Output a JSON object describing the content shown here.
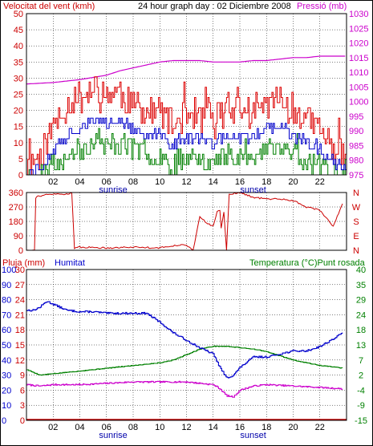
{
  "header": {
    "title": "24 hour graph day : 02 Diciembre 2008"
  },
  "colors": {
    "wind_avg": "#0000cc",
    "wind_gust": "#dd0000",
    "wind_min": "#008000",
    "pressure": "#cc00cc",
    "direction": "#cc0000",
    "humidity": "#0000cc",
    "temperature": "#008000",
    "dewpoint": "#cc00cc",
    "rain": "#cc0000",
    "frame": "#000000",
    "grid": "#000000"
  },
  "chart_data": [
    {
      "type": "line",
      "panel": "wind",
      "title": "24 hour graph day : 02 Diciembre 2008",
      "ylabel_left": "Velocitat del vent (kmh)",
      "ylabel_right": "Pressió (mb)",
      "left_ticks": [
        "0",
        "5",
        "10",
        "15",
        "20",
        "25",
        "30",
        "35",
        "40",
        "45",
        "50"
      ],
      "right_ticks": [
        "975",
        "980",
        "985",
        "990",
        "995",
        "1000",
        "1005",
        "1010",
        "1015",
        "1020",
        "1025",
        "1030"
      ],
      "x_ticks": [
        "02",
        "04",
        "06",
        "08",
        "10",
        "12",
        "14",
        "16",
        "18",
        "20",
        "22"
      ],
      "x_annotations": [
        {
          "hour": 6.5,
          "text": "sunrise"
        },
        {
          "hour": 17,
          "text": "sunset"
        }
      ],
      "xlim": [
        0,
        24
      ],
      "ylim_left": [
        0,
        50
      ],
      "ylim_right": [
        975,
        1030
      ],
      "series": [
        {
          "key": "pressure",
          "axis": "right",
          "x": [
            0,
            2,
            4,
            6,
            7,
            8,
            9,
            10,
            11,
            12,
            13,
            14,
            15,
            16,
            17,
            18,
            19,
            20,
            21,
            22,
            23,
            24
          ],
          "y": [
            1006,
            1006.5,
            1007.5,
            1009,
            1010.5,
            1011.5,
            1012.5,
            1013.5,
            1014,
            1014,
            1014,
            1013.5,
            1013.5,
            1013.5,
            1014,
            1014,
            1014.5,
            1015,
            1015,
            1015.5,
            1015.5,
            1015.5
          ]
        },
        {
          "key": "wind_gust",
          "axis": "left",
          "x": [
            0,
            1,
            2,
            3,
            4,
            5,
            6,
            7,
            8,
            9,
            10,
            11,
            12,
            13,
            14,
            15,
            16,
            17,
            18,
            19,
            20,
            21,
            22,
            23,
            24
          ],
          "y": [
            3,
            6,
            15,
            22,
            24,
            26,
            25,
            26,
            21,
            19,
            20,
            15,
            20,
            18,
            17,
            21,
            20,
            19,
            22,
            24,
            20,
            17,
            14,
            8,
            6
          ]
        },
        {
          "key": "wind_avg",
          "axis": "left",
          "x": [
            0,
            1,
            2,
            3,
            4,
            5,
            6,
            7,
            8,
            9,
            10,
            11,
            12,
            13,
            14,
            15,
            16,
            17,
            18,
            19,
            20,
            21,
            22,
            23,
            24
          ],
          "y": [
            1,
            2,
            8,
            12,
            15,
            17,
            16,
            17,
            14,
            12,
            12,
            9,
            12,
            11,
            10,
            12,
            12,
            11,
            14,
            15,
            12,
            10,
            8,
            4,
            3
          ]
        },
        {
          "key": "wind_min",
          "axis": "left",
          "x": [
            0,
            1,
            2,
            3,
            4,
            5,
            6,
            7,
            8,
            9,
            10,
            11,
            12,
            13,
            14,
            15,
            16,
            17,
            18,
            19,
            20,
            21,
            22,
            23,
            24
          ],
          "y": [
            0,
            0,
            3,
            6,
            8,
            10,
            9,
            10,
            8,
            6,
            6,
            3,
            6,
            5,
            4,
            6,
            6,
            5,
            8,
            9,
            6,
            4,
            3,
            1,
            0
          ]
        }
      ]
    },
    {
      "type": "line",
      "panel": "direction",
      "left_ticks": [
        "0",
        "90",
        "180",
        "270",
        "360"
      ],
      "right_ticks": [
        "N",
        "E",
        "S",
        "W",
        "N"
      ],
      "xlim": [
        0,
        24
      ],
      "ylim": [
        0,
        360
      ],
      "series": [
        {
          "key": "direction",
          "x": [
            0,
            0.6,
            0.7,
            1,
            2,
            3,
            3.4,
            3.6,
            4,
            6,
            8,
            10,
            11.5,
            12.2,
            12.5,
            13,
            13.5,
            14,
            14.3,
            14.5,
            14.6,
            14.8,
            15,
            15.2,
            16,
            17,
            18,
            19,
            20,
            21,
            22,
            23,
            23.7
          ],
          "y": [
            0,
            0,
            330,
            340,
            350,
            350,
            360,
            10,
            20,
            15,
            20,
            15,
            35,
            25,
            0,
            210,
            170,
            150,
            240,
            250,
            140,
            240,
            0,
            350,
            360,
            330,
            320,
            320,
            310,
            270,
            250,
            150,
            290
          ]
        }
      ]
    },
    {
      "type": "line",
      "panel": "climate",
      "ylabel_left_rain": "Pluja (mm)",
      "ylabel_left_hum": "Humitat",
      "ylabel_right": "Temperatura (°C)Punt rosada",
      "rain_ticks": [
        "0",
        "3",
        "6",
        "9",
        "12",
        "15",
        "18",
        "21",
        "24",
        "27",
        "30"
      ],
      "hum_ticks": [
        "0",
        "10",
        "20",
        "30",
        "40",
        "50",
        "60",
        "70",
        "80",
        "90",
        "100"
      ],
      "temp_ticks": [
        "-15",
        "-9",
        "-4",
        "2",
        "7",
        "13",
        "18",
        "24",
        "29",
        "35",
        "40"
      ],
      "x_ticks": [
        "02",
        "04",
        "06",
        "08",
        "10",
        "12",
        "14",
        "16",
        "18",
        "20",
        "22"
      ],
      "x_annotations": [
        {
          "hour": 6.5,
          "text": "sunrise"
        },
        {
          "hour": 17,
          "text": "sunset"
        }
      ],
      "xlim": [
        0,
        24
      ],
      "ylim_humidity": [
        0,
        100
      ],
      "ylim_temperature": [
        -15,
        40
      ],
      "ylim_rain": [
        0,
        30
      ],
      "series": [
        {
          "key": "humidity",
          "axis": "humidity",
          "x": [
            0,
            0.5,
            1,
            1.5,
            2,
            3,
            4,
            5,
            6,
            7,
            8,
            9,
            10,
            11,
            12,
            13,
            14,
            14.5,
            15,
            15.5,
            16,
            17,
            18,
            19,
            20,
            21,
            22,
            23,
            23.7
          ],
          "y": [
            73,
            73,
            75,
            79,
            77,
            73,
            72,
            72,
            71,
            71,
            71,
            71,
            65,
            58,
            53,
            48,
            44,
            35,
            28,
            30,
            35,
            42,
            42,
            44,
            46,
            46,
            49,
            54,
            58
          ]
        },
        {
          "key": "temperature",
          "axis": "temperature",
          "x": [
            0,
            1,
            2,
            3,
            4,
            5,
            6,
            7,
            8,
            9,
            10,
            11,
            12,
            13,
            14,
            15,
            16,
            17,
            18,
            19,
            20,
            21,
            22,
            23,
            23.7
          ],
          "y": [
            3.5,
            1.5,
            2,
            2.5,
            3,
            3.5,
            4,
            4.5,
            5,
            5.5,
            6,
            7,
            9,
            11,
            12,
            12,
            11.5,
            11,
            10,
            8.5,
            7,
            6,
            5,
            4.5,
            4
          ]
        },
        {
          "key": "dewpoint",
          "axis": "temperature",
          "x": [
            0,
            1,
            2,
            4,
            6,
            8,
            10,
            11,
            12,
            13,
            14,
            14.5,
            15,
            15.5,
            16,
            17,
            18,
            20,
            22,
            23.7
          ],
          "y": [
            -2,
            -2.5,
            -2,
            -2,
            -1.5,
            -1,
            -1,
            -1,
            -1,
            -1.5,
            -2,
            -3.5,
            -6,
            -6.5,
            -4,
            -2.5,
            -2,
            -2.5,
            -3,
            -3.5
          ]
        },
        {
          "key": "rain",
          "axis": "rain",
          "x": [
            0,
            24
          ],
          "y": [
            0,
            0
          ]
        }
      ]
    }
  ]
}
